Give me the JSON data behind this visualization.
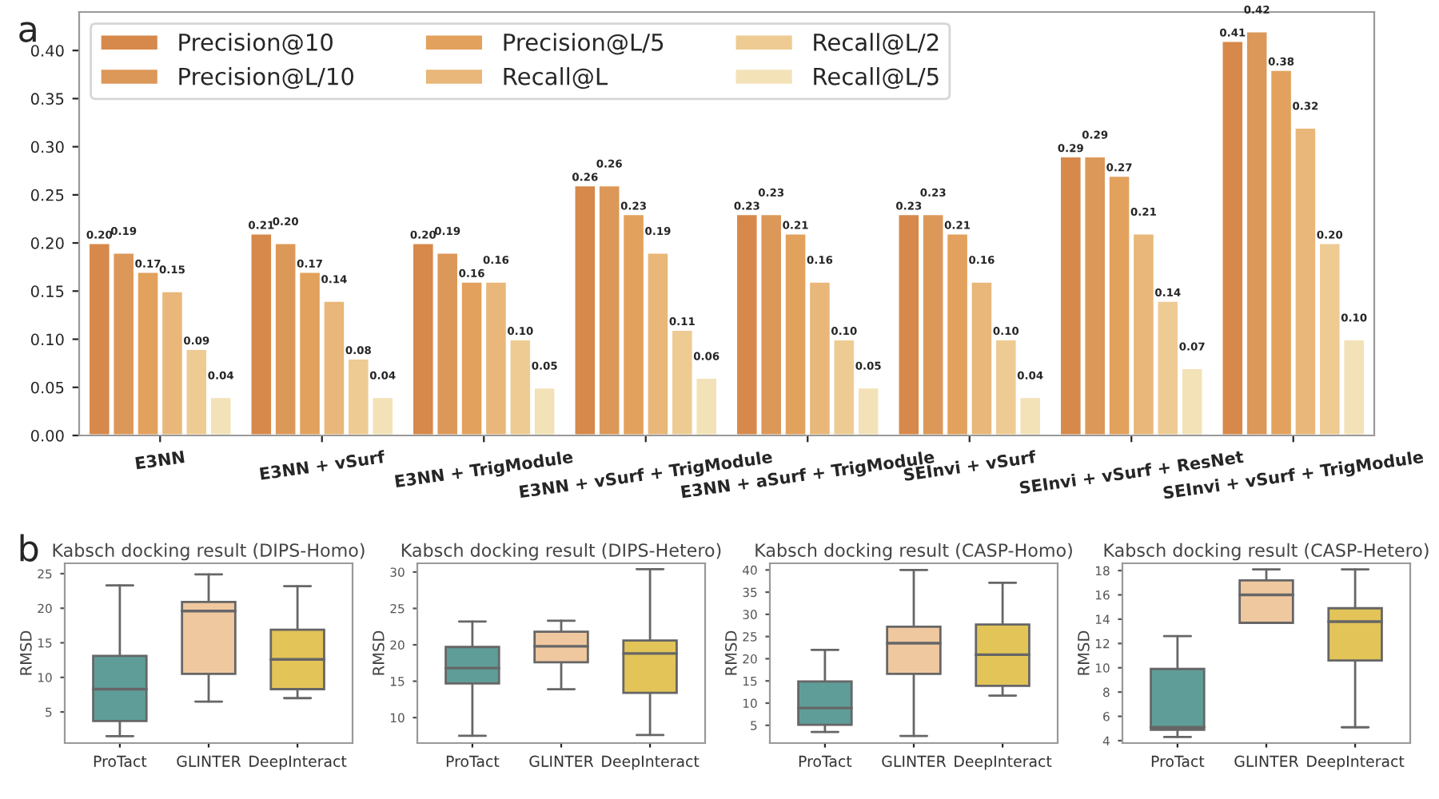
{
  "chart_data": [
    {
      "type": "bar",
      "annotations": [
        "a"
      ],
      "categories": [
        "E3NN",
        "E3NN + vSurf",
        "E3NN + TrigModule",
        "E3NN + vSurf + TrigModule",
        "E3NN + aSurf + TrigModule",
        "SEInvi + vSurf",
        "SEInvi + vSurf + ResNet",
        "SEInvi + vSurf + TrigModule"
      ],
      "series": [
        {
          "name": "Precision@10",
          "color": "#d6894b",
          "values": [
            0.2,
            0.21,
            0.2,
            0.26,
            0.23,
            0.23,
            0.29,
            0.41
          ],
          "value_labels": [
            "0.20",
            "0.21",
            "0.20",
            "0.26",
            "0.23",
            "0.23",
            "0.29",
            "0.41"
          ]
        },
        {
          "name": "Precision@L/10",
          "color": "#dc9858",
          "values": [
            0.19,
            0.2,
            0.19,
            0.26,
            0.23,
            0.23,
            0.29,
            0.42
          ],
          "value_labels": [
            "0.19",
            "0.20",
            "0.19",
            "0.26",
            "0.23",
            "0.23",
            "0.29",
            "0.42"
          ]
        },
        {
          "name": "Precision@L/5",
          "color": "#e2a15c",
          "values": [
            0.17,
            0.17,
            0.16,
            0.23,
            0.21,
            0.21,
            0.27,
            0.38
          ],
          "value_labels": [
            "0.17",
            "0.17",
            "0.16",
            "0.23",
            "0.21",
            "0.21",
            "0.27",
            "0.38"
          ]
        },
        {
          "name": "Recall@L",
          "color": "#e8b779",
          "values": [
            0.15,
            0.14,
            0.16,
            0.19,
            0.16,
            0.16,
            0.21,
            0.32
          ],
          "value_labels": [
            "0.15",
            "0.14",
            "0.16",
            "0.19",
            "0.16",
            "0.16",
            "0.21",
            "0.32"
          ]
        },
        {
          "name": "Recall@L/2",
          "color": "#eecb93",
          "values": [
            0.09,
            0.08,
            0.1,
            0.11,
            0.1,
            0.1,
            0.14,
            0.2
          ],
          "value_labels": [
            "0.09",
            "0.08",
            "0.10",
            "0.11",
            "0.10",
            "0.10",
            "0.14",
            "0.20"
          ]
        },
        {
          "name": "Recall@L/5",
          "color": "#f3e2b8",
          "values": [
            0.04,
            0.04,
            0.05,
            0.06,
            0.05,
            0.04,
            0.07,
            0.1
          ],
          "value_labels": [
            "0.04",
            "0.04",
            "0.05",
            "0.06",
            "0.05",
            "0.04",
            "0.07",
            "0.10"
          ]
        }
      ],
      "ylim": [
        0,
        0.44
      ],
      "yticks": [
        {
          "value": 0,
          "label": "0.00"
        },
        {
          "value": 0.05,
          "label": "0.05"
        },
        {
          "value": 0.1,
          "label": "0.10"
        },
        {
          "value": 0.15,
          "label": "0.15"
        },
        {
          "value": 0.2,
          "label": "0.20"
        },
        {
          "value": 0.25,
          "label": "0.25"
        },
        {
          "value": 0.3,
          "label": "0.30"
        },
        {
          "value": 0.35,
          "label": "0.35"
        },
        {
          "value": 0.4,
          "label": "0.40"
        }
      ],
      "legend": "top left",
      "grid": false
    },
    {
      "type": "box",
      "annotations": [
        "b"
      ],
      "title": "Kabsch docking result (DIPS-Homo)",
      "ylabel": "RMSD",
      "categories": [
        "ProTact",
        "GLINTER",
        "DeepInteract"
      ],
      "colors": [
        "#5f9e98",
        "#f0c8a0",
        "#e3c458"
      ],
      "boxes": [
        {
          "low": 1.5,
          "q1": 3.7,
          "median": 8.3,
          "q3": 13.1,
          "high": 23.3
        },
        {
          "low": 6.5,
          "q1": 10.5,
          "median": 19.6,
          "q3": 20.9,
          "high": 24.9
        },
        {
          "low": 7.0,
          "q1": 8.3,
          "median": 12.6,
          "q3": 16.9,
          "high": 23.2
        }
      ],
      "ylim": [
        0.5,
        26.5
      ],
      "yticks": [
        5,
        10,
        15,
        20,
        25
      ]
    },
    {
      "type": "box",
      "title": "Kabsch docking result (DIPS-Hetero)",
      "ylabel": "RMSD",
      "categories": [
        "ProTact",
        "GLINTER",
        "DeepInteract"
      ],
      "colors": [
        "#5f9e98",
        "#f0c8a0",
        "#e3c458"
      ],
      "boxes": [
        {
          "low": 7.5,
          "q1": 14.7,
          "median": 16.8,
          "q3": 19.7,
          "high": 23.2
        },
        {
          "low": 13.9,
          "q1": 17.6,
          "median": 19.8,
          "q3": 21.8,
          "high": 23.3
        },
        {
          "low": 7.6,
          "q1": 13.4,
          "median": 18.8,
          "q3": 20.6,
          "high": 30.4
        }
      ],
      "ylim": [
        6.5,
        31.2
      ],
      "yticks": [
        10,
        15,
        20,
        25,
        30
      ]
    },
    {
      "type": "box",
      "title": "Kabsch docking result (CASP-Homo)",
      "ylabel": "RMSD",
      "categories": [
        "ProTact",
        "GLINTER",
        "DeepInteract"
      ],
      "colors": [
        "#5f9e98",
        "#f0c8a0",
        "#e3c458"
      ],
      "boxes": [
        {
          "low": 3.5,
          "q1": 5.1,
          "median": 8.9,
          "q3": 14.9,
          "high": 22.0
        },
        {
          "low": 2.6,
          "q1": 16.6,
          "median": 23.5,
          "q3": 27.2,
          "high": 40.0
        },
        {
          "low": 11.7,
          "q1": 13.9,
          "median": 20.9,
          "q3": 27.7,
          "high": 37.1
        }
      ],
      "ylim": [
        1,
        41.5
      ],
      "yticks": [
        5,
        10,
        15,
        20,
        25,
        30,
        35,
        40
      ]
    },
    {
      "type": "box",
      "title": "Kabsch docking result (CASP-Hetero)",
      "ylabel": "RMSD",
      "categories": [
        "ProTact",
        "GLINTER",
        "DeepInteract"
      ],
      "colors": [
        "#5f9e98",
        "#f0c8a0",
        "#e3c458"
      ],
      "boxes": [
        {
          "low": 4.3,
          "q1": 4.9,
          "median": 5.1,
          "q3": 9.9,
          "high": 12.6
        },
        {
          "low": 13.7,
          "q1": 13.7,
          "median": 16.0,
          "q3": 17.2,
          "high": 18.1
        },
        {
          "low": 5.1,
          "q1": 10.6,
          "median": 13.8,
          "q3": 14.9,
          "high": 18.1
        }
      ],
      "ylim": [
        3.8,
        18.6
      ],
      "yticks": [
        4,
        6,
        8,
        10,
        12,
        14,
        16,
        18
      ]
    }
  ]
}
